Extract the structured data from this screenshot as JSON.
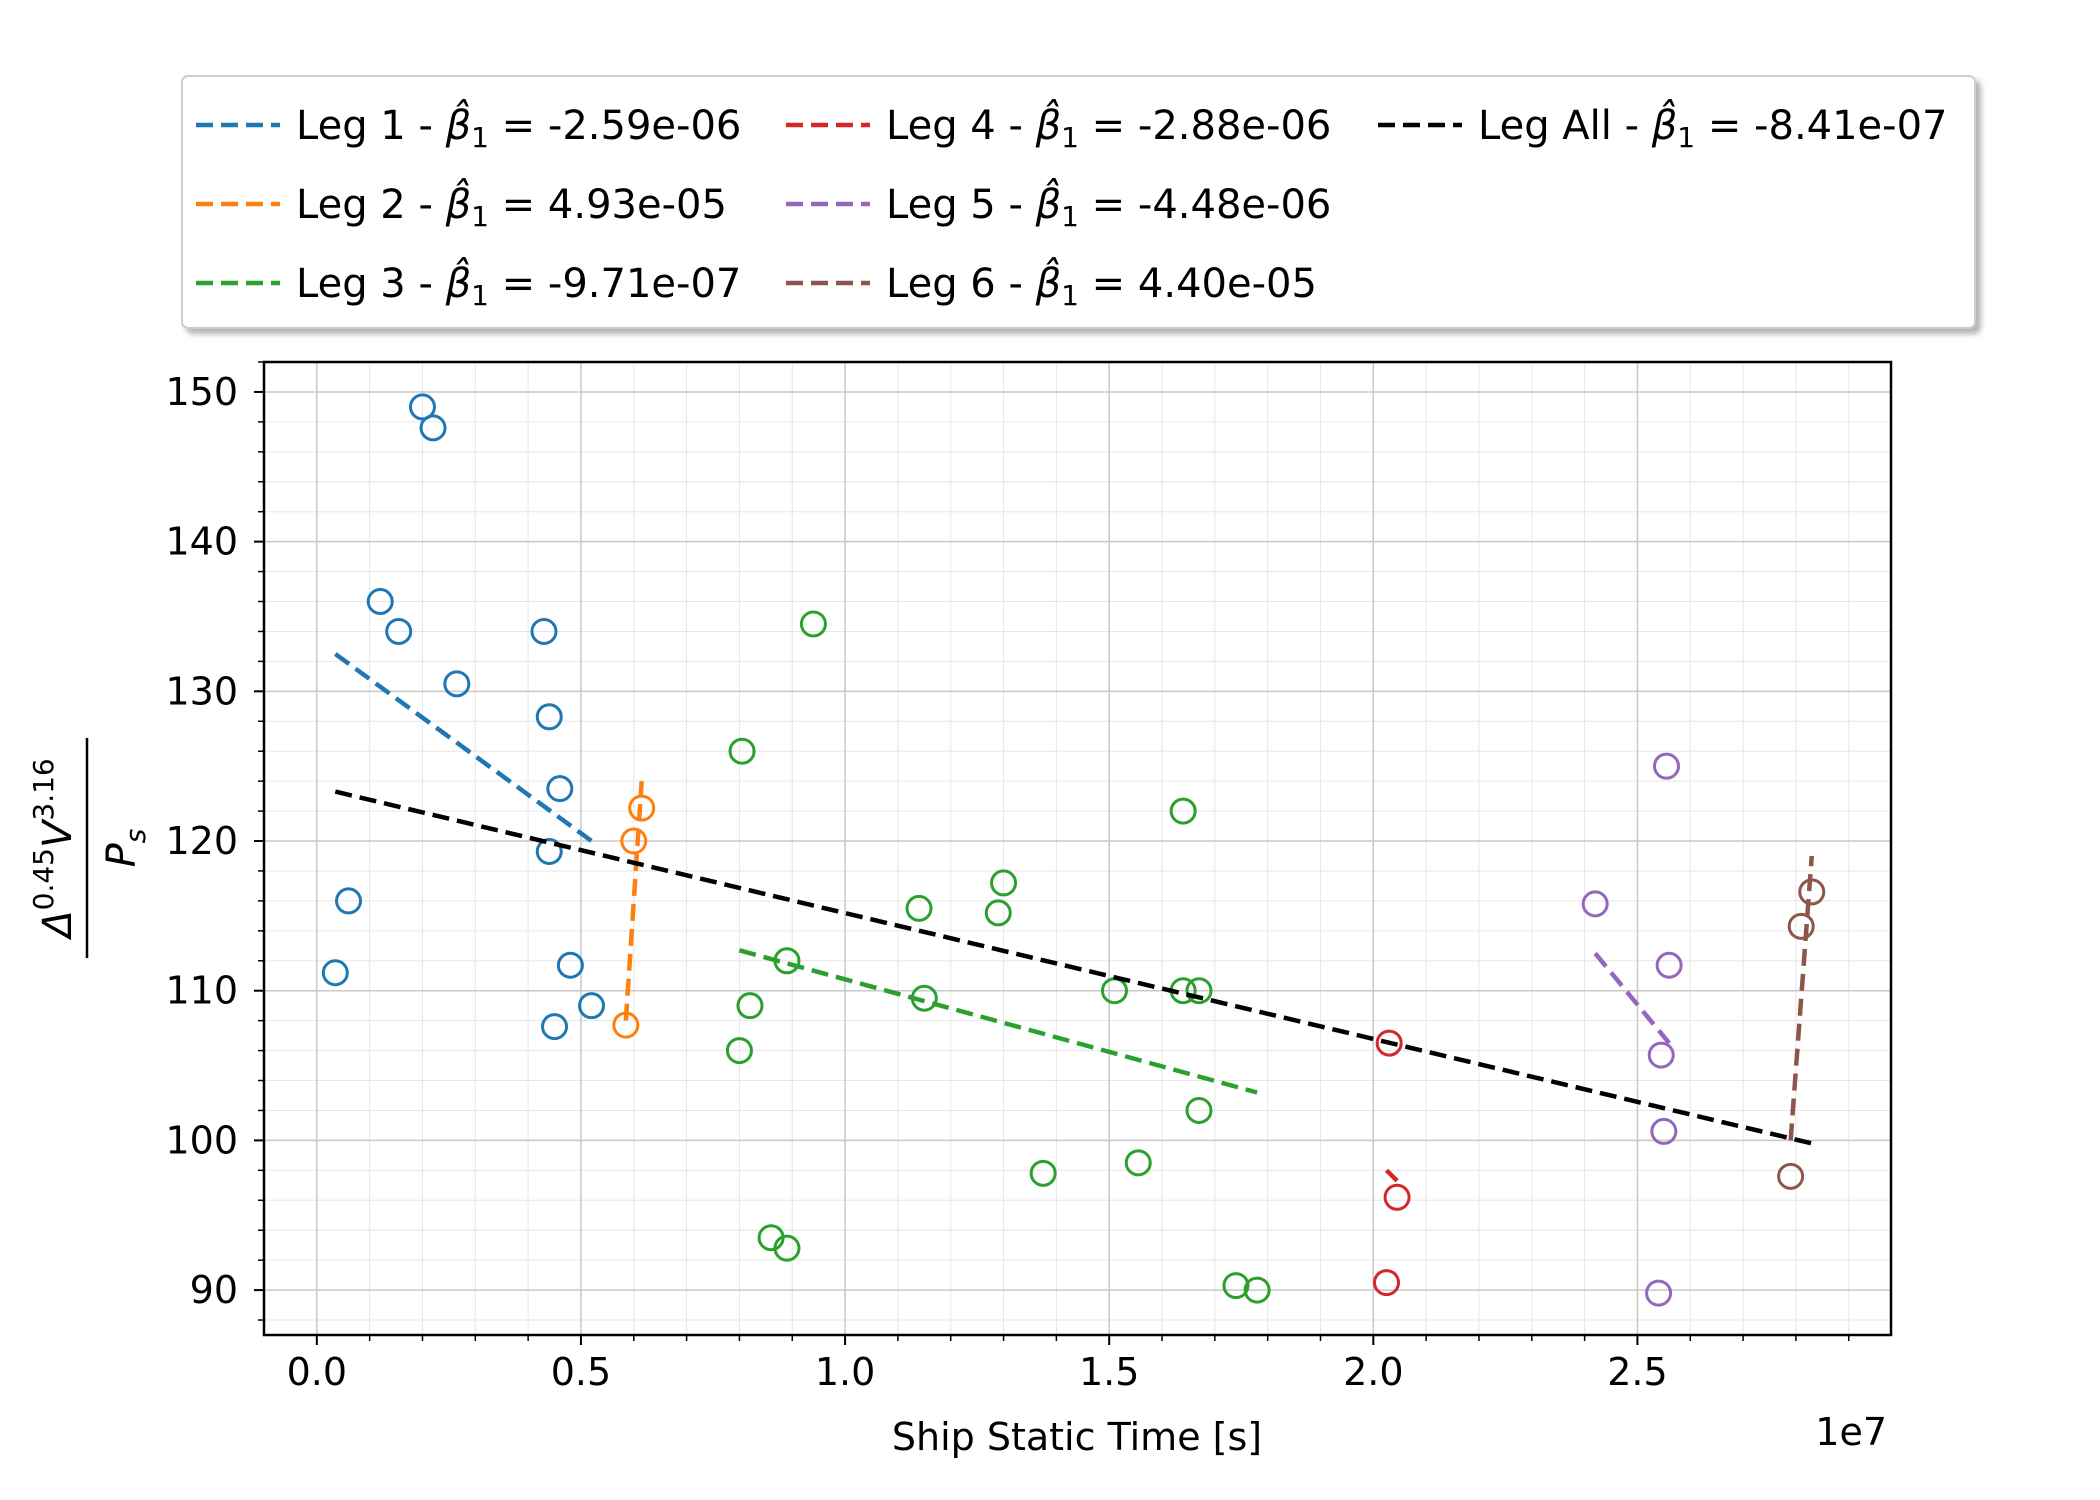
{
  "chart_data": {
    "type": "scatter",
    "title": "",
    "xlabel": "Ship Static Time [s]",
    "x_offset_label": "1e7",
    "ylabel": {
      "base": "Δ",
      "exp1": "0.45",
      "mid": "V",
      "exp2": "3.16",
      "den_main": "P",
      "den_sub": "s"
    },
    "xlim": [
      -0.1,
      2.98
    ],
    "ylim": [
      87,
      152
    ],
    "x_ticks": [
      0.0,
      0.5,
      1.0,
      1.5,
      2.0,
      2.5
    ],
    "x_tick_labels": [
      "0.0",
      "0.5",
      "1.0",
      "1.5",
      "2.0",
      "2.5"
    ],
    "y_ticks": [
      90,
      100,
      110,
      120,
      130,
      140,
      150
    ],
    "y_tick_labels": [
      "90",
      "100",
      "110",
      "120",
      "130",
      "140",
      "150"
    ],
    "grid": true,
    "minor_grid": true,
    "legend_position": "top, outside plot, 3 columns",
    "series": [
      {
        "name": "Leg 1",
        "beta_label": "-2.59e-06",
        "color": "#1f77b4",
        "points": [
          [
            0.035,
            111.2
          ],
          [
            0.06,
            116.0
          ],
          [
            0.12,
            136.0
          ],
          [
            0.155,
            134.0
          ],
          [
            0.2,
            149.0
          ],
          [
            0.22,
            147.6
          ],
          [
            0.265,
            130.5
          ],
          [
            0.43,
            134.0
          ],
          [
            0.44,
            128.3
          ],
          [
            0.44,
            119.3
          ],
          [
            0.45,
            107.6
          ],
          [
            0.46,
            123.5
          ],
          [
            0.48,
            111.7
          ],
          [
            0.52,
            109.0
          ]
        ],
        "fit": [
          [
            0.035,
            132.5
          ],
          [
            0.52,
            120.0
          ]
        ]
      },
      {
        "name": "Leg 2",
        "beta_label": "4.93e-05",
        "color": "#ff7f0e",
        "points": [
          [
            0.585,
            107.7
          ],
          [
            0.6,
            120.0
          ],
          [
            0.615,
            122.2
          ]
        ],
        "fit": [
          [
            0.585,
            108.0
          ],
          [
            0.615,
            124.0
          ]
        ]
      },
      {
        "name": "Leg 3",
        "beta_label": "-9.71e-07",
        "color": "#2ca02c",
        "points": [
          [
            0.8,
            106.0
          ],
          [
            0.805,
            126.0
          ],
          [
            0.82,
            109.0
          ],
          [
            0.86,
            93.5
          ],
          [
            0.89,
            92.8
          ],
          [
            0.89,
            112.0
          ],
          [
            0.94,
            134.5
          ],
          [
            1.14,
            115.5
          ],
          [
            1.15,
            109.5
          ],
          [
            1.29,
            115.2
          ],
          [
            1.3,
            117.2
          ],
          [
            1.375,
            97.8
          ],
          [
            1.51,
            110.0
          ],
          [
            1.555,
            98.5
          ],
          [
            1.64,
            122.0
          ],
          [
            1.64,
            110.0
          ],
          [
            1.67,
            110.0
          ],
          [
            1.67,
            102.0
          ],
          [
            1.74,
            90.3
          ],
          [
            1.78,
            90.0
          ]
        ],
        "fit": [
          [
            0.8,
            112.7
          ],
          [
            1.78,
            103.2
          ]
        ]
      },
      {
        "name": "Leg 4",
        "beta_label": "-2.88e-06",
        "color": "#d62728",
        "points": [
          [
            2.025,
            90.5
          ],
          [
            2.03,
            106.5
          ],
          [
            2.045,
            96.2
          ]
        ],
        "fit": [
          [
            2.025,
            98.0
          ],
          [
            2.045,
            97.3
          ]
        ]
      },
      {
        "name": "Leg 5",
        "beta_label": "-4.48e-06",
        "color": "#9467bd",
        "points": [
          [
            2.42,
            115.8
          ],
          [
            2.54,
            89.8
          ],
          [
            2.545,
            105.7
          ],
          [
            2.55,
            100.6
          ],
          [
            2.555,
            125.0
          ],
          [
            2.56,
            111.7
          ]
        ],
        "fit": [
          [
            2.42,
            112.5
          ],
          [
            2.56,
            106.5
          ]
        ]
      },
      {
        "name": "Leg 6",
        "beta_label": "4.40e-05",
        "color": "#8c564b",
        "points": [
          [
            2.79,
            97.6
          ],
          [
            2.81,
            114.3
          ],
          [
            2.83,
            116.6
          ]
        ],
        "fit": [
          [
            2.79,
            100.0
          ],
          [
            2.83,
            119.0
          ]
        ]
      },
      {
        "name": "Leg All",
        "beta_label": "-8.41e-07",
        "color": "#000000",
        "points": [],
        "fit": [
          [
            0.035,
            123.3
          ],
          [
            2.83,
            99.8
          ]
        ]
      }
    ]
  }
}
